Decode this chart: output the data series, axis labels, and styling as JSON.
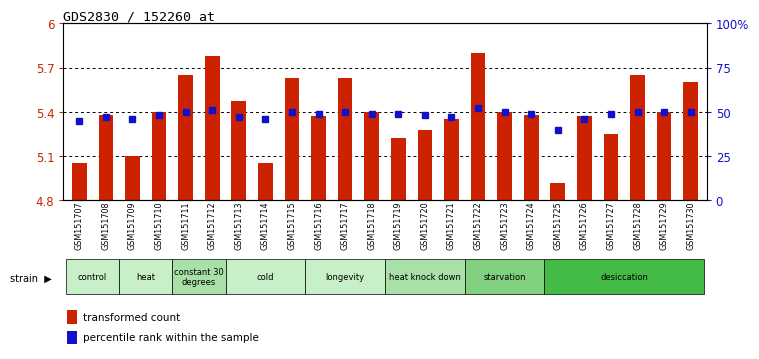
{
  "title": "GDS2830 / 152260_at",
  "samples": [
    "GSM151707",
    "GSM151708",
    "GSM151709",
    "GSM151710",
    "GSM151711",
    "GSM151712",
    "GSM151713",
    "GSM151714",
    "GSM151715",
    "GSM151716",
    "GSM151717",
    "GSM151718",
    "GSM151719",
    "GSM151720",
    "GSM151721",
    "GSM151722",
    "GSM151723",
    "GSM151724",
    "GSM151725",
    "GSM151726",
    "GSM151727",
    "GSM151728",
    "GSM151729",
    "GSM151730"
  ],
  "bar_values": [
    5.05,
    5.38,
    5.1,
    5.4,
    5.65,
    5.78,
    5.47,
    5.05,
    5.63,
    5.37,
    5.63,
    5.4,
    5.22,
    5.28,
    5.35,
    5.8,
    5.4,
    5.38,
    4.92,
    5.37,
    5.25,
    5.65,
    5.4,
    5.6
  ],
  "percentile_values": [
    45,
    47,
    46,
    48,
    50,
    51,
    47,
    46,
    50,
    49,
    50,
    49,
    49,
    48,
    47,
    52,
    50,
    49,
    40,
    46,
    49,
    50,
    50,
    50
  ],
  "groups": [
    {
      "label": "control",
      "start": 0,
      "end": 2,
      "color": "#c8f0c8"
    },
    {
      "label": "heat",
      "start": 2,
      "end": 4,
      "color": "#c8f0c8"
    },
    {
      "label": "constant 30\ndegrees",
      "start": 4,
      "end": 6,
      "color": "#a8e0a8"
    },
    {
      "label": "cold",
      "start": 6,
      "end": 9,
      "color": "#c8f0c8"
    },
    {
      "label": "longevity",
      "start": 9,
      "end": 12,
      "color": "#c8f0c8"
    },
    {
      "label": "heat knock down",
      "start": 12,
      "end": 15,
      "color": "#a8e0a8"
    },
    {
      "label": "starvation",
      "start": 15,
      "end": 18,
      "color": "#80d080"
    },
    {
      "label": "desiccation",
      "start": 18,
      "end": 24,
      "color": "#44bb44"
    }
  ],
  "ylim": [
    4.8,
    6.0
  ],
  "yticks": [
    4.8,
    5.1,
    5.4,
    5.7,
    6.0
  ],
  "ytick_labels": [
    "4.8",
    "5.1",
    "5.4",
    "5.7",
    "6"
  ],
  "right_yticks": [
    0,
    25,
    50,
    75,
    100
  ],
  "right_ytick_labels": [
    "0",
    "25",
    "50",
    "75",
    "100%"
  ],
  "bar_color": "#cc2200",
  "dot_color": "#1111cc",
  "bar_width": 0.55,
  "grid_lines": [
    5.1,
    5.4,
    5.7
  ]
}
